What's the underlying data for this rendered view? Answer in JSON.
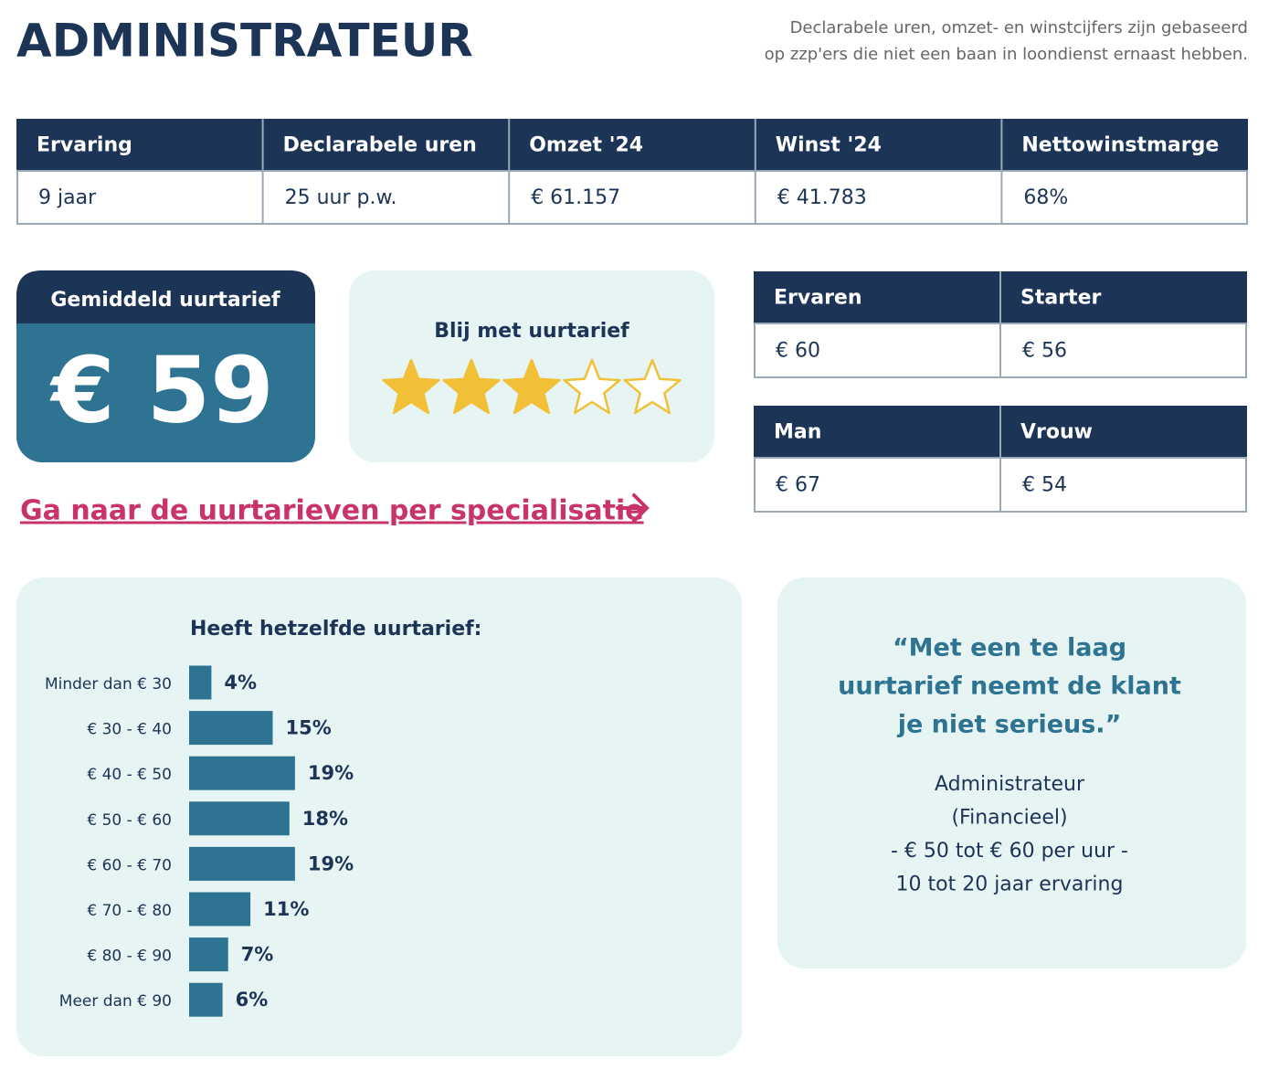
{
  "header": {
    "title": "ADMINISTRATEUR",
    "note": [
      "Declarabele uren, omzet- en winstcijfers zijn gebaseerd",
      "op zzp'ers die niet een baan in loondienst ernaast hebben."
    ]
  },
  "table": {
    "headers": [
      "Ervaring",
      "Declarabele uren",
      "Omzet '24",
      "Winst '24",
      "Nettowinstmarge"
    ],
    "rows": [
      [
        "9 jaar",
        "25 uur p.w.",
        "€ 61.157",
        "€ 41.783",
        "68%"
      ]
    ]
  },
  "average_rate": {
    "label": "Gemiddeld uurtarief",
    "value": "€ 59"
  },
  "rating": {
    "label": "Blij met uurtarief",
    "value": 3,
    "max": 5
  },
  "experience_table": {
    "headers": [
      "Ervaren",
      "Starter"
    ],
    "rows": [
      [
        "€ 60",
        "€ 56"
      ]
    ]
  },
  "gender_table": {
    "headers": [
      "Man",
      "Vrouw"
    ],
    "rows": [
      [
        "€ 67",
        "€ 54"
      ]
    ]
  },
  "link": {
    "text": "Ga naar de uurtarieven per specialisatie"
  },
  "chart_data": {
    "type": "bar",
    "title": "Heeft hetzelfde uurtarief:",
    "categories": [
      "Minder dan € 30",
      "€ 30 - € 40",
      "€ 40 - € 50",
      "€ 50 - € 60",
      "€ 60 - € 70",
      "€ 70 - € 80",
      "€ 80 - € 90",
      "Meer dan € 90"
    ],
    "values": [
      4,
      15,
      19,
      18,
      19,
      11,
      7,
      6
    ],
    "value_labels": [
      "4%",
      "15%",
      "19%",
      "18%",
      "19%",
      "11%",
      "7%",
      "6%"
    ],
    "color": "#2e7391"
  },
  "quote": {
    "text": [
      "“Met een te laag",
      "uurtarief neemt de klant",
      "je niet serieus.”"
    ],
    "attribution": [
      "Administrateur",
      "(Financieel)",
      "- € 50 tot € 60 per uur -",
      "10 tot 20 jaar ervaring"
    ]
  }
}
